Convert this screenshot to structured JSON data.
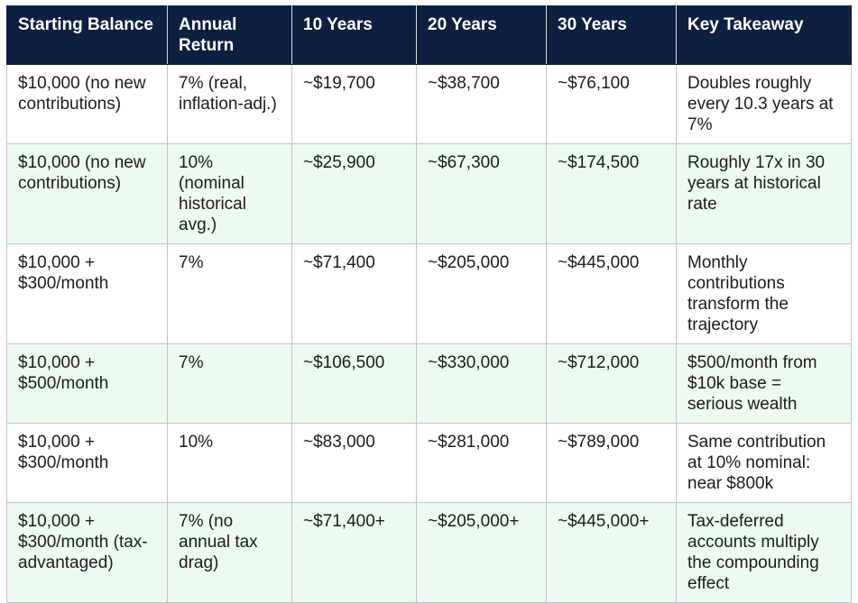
{
  "table": {
    "headers": [
      "Starting Balance",
      "Annual Return",
      "10 Years",
      "20 Years",
      "30 Years",
      "Key Takeaway"
    ],
    "rows": [
      [
        "$10,000 (no new contributions)",
        "7% (real, inflation-adj.)",
        "~$19,700",
        "~$38,700",
        "~$76,100",
        "Doubles roughly every 10.3 years at 7%"
      ],
      [
        "$10,000 (no new contributions)",
        "10% (nominal historical avg.)",
        "~$25,900",
        "~$67,300",
        "~$174,500",
        "Roughly 17x in 30 years at historical rate"
      ],
      [
        "$10,000 + $300/month",
        "7%",
        "~$71,400",
        "~$205,000",
        "~$445,000",
        "Monthly contributions transform the trajectory"
      ],
      [
        "$10,000 + $500/month",
        "7%",
        "~$106,500",
        "~$330,000",
        "~$712,000",
        "$500/month from $10k base = serious wealth"
      ],
      [
        "$10,000 + $300/month",
        "10%",
        "~$83,000",
        "~$281,000",
        "~$789,000",
        "Same contribution at 10% nominal: near $800k"
      ],
      [
        "$10,000 + $300/month (tax-advantaged)",
        "7% (no annual tax drag)",
        "~$71,400+",
        "~$205,000+",
        "~$445,000+",
        "Tax-deferred accounts multiply the compounding effect"
      ]
    ]
  },
  "colors": {
    "header_bg": "#0e1f3f",
    "header_text": "#ffffff",
    "alt_row_bg": "#edfaf0",
    "border": "#bfc5cc"
  }
}
